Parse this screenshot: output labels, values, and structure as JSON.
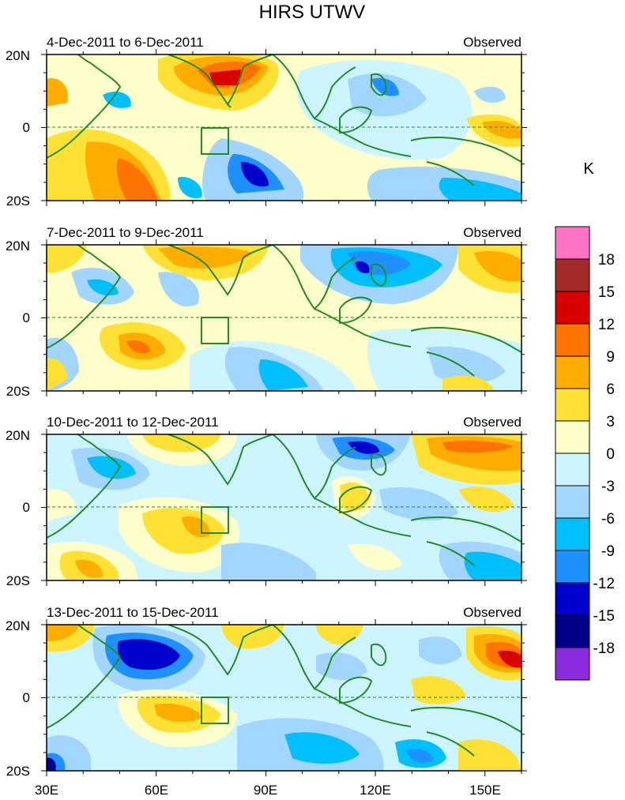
{
  "title": "HIRS UTWV",
  "panels": [
    {
      "date_range": "4-Dec-2011 to 6-Dec-2011",
      "label": "Observed"
    },
    {
      "date_range": "7-Dec-2011 to 9-Dec-2011",
      "label": "Observed"
    },
    {
      "date_range": "10-Dec-2011 to 12-Dec-2011",
      "label": "Observed"
    },
    {
      "date_range": "13-Dec-2011 to 15-Dec-2011",
      "label": "Observed"
    }
  ],
  "lat_labels": [
    "20N",
    "0",
    "20S"
  ],
  "lon_labels": [
    "30E",
    "60E",
    "90E",
    "120E",
    "150E"
  ],
  "colorbar": {
    "unit": "K",
    "levels": [
      "18",
      "15",
      "12",
      "9",
      "6",
      "3",
      "0",
      "-3",
      "-6",
      "-9",
      "-12",
      "-15",
      "-18"
    ],
    "colors": [
      "#ff73c4",
      "#a52a2a",
      "#d90000",
      "#ff7300",
      "#ffad00",
      "#ffe034",
      "#ffffcc",
      "#ccf5ff",
      "#a3d6ff",
      "#00bfff",
      "#1e90ff",
      "#0000cd",
      "#00008b",
      "#8a2be2"
    ]
  },
  "colors": {
    "coastline": "#228b22",
    "equator": "#228b22",
    "frame": "#000000"
  },
  "map_extent": {
    "lon_min": 30,
    "lon_max": 160,
    "lat_min": -20,
    "lat_max": 20
  }
}
